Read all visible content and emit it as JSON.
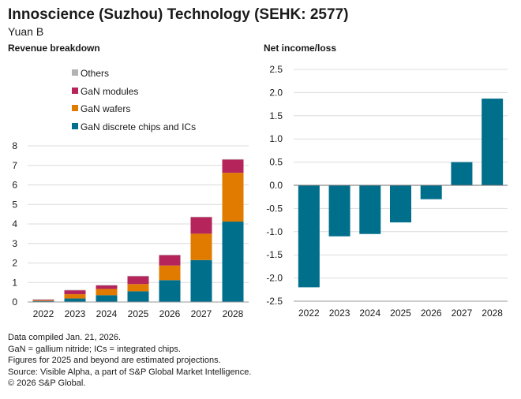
{
  "header": {
    "title": "Innoscience (Suzhou) Technology (SEHK: 2577)",
    "subtitle": "Yuan B"
  },
  "colors": {
    "others": "#b3b3b3",
    "gan_modules": "#b5245a",
    "gan_wafers": "#e07b00",
    "gan_discrete": "#006f8c",
    "grid": "#dcdcdc",
    "axis": "#9a9a9a",
    "text": "#1a1a1a"
  },
  "chart_data": [
    {
      "type": "bar",
      "stacked": true,
      "title": "Revenue breakdown",
      "categories": [
        "2022",
        "2023",
        "2024",
        "2025",
        "2026",
        "2027",
        "2028"
      ],
      "series": [
        {
          "name": "GaN discrete chips and ICs",
          "color_key": "gan_discrete",
          "values": [
            0.05,
            0.18,
            0.35,
            0.55,
            1.12,
            2.15,
            4.12
          ]
        },
        {
          "name": "GaN wafers",
          "color_key": "gan_wafers",
          "values": [
            0.04,
            0.22,
            0.32,
            0.37,
            0.75,
            1.35,
            2.5
          ]
        },
        {
          "name": "GaN modules",
          "color_key": "gan_modules",
          "values": [
            0.03,
            0.2,
            0.18,
            0.4,
            0.53,
            0.85,
            0.68
          ]
        },
        {
          "name": "Others",
          "color_key": "others",
          "values": [
            0.02,
            0.02,
            0.02,
            0.02,
            0.02,
            0.02,
            0.02
          ]
        }
      ],
      "legend_order": [
        "Others",
        "GaN modules",
        "GaN wafers",
        "GaN discrete chips and ICs"
      ],
      "legend_placement": "top-left",
      "ylim": [
        0,
        8
      ],
      "yticks": [
        "0",
        "1",
        "2",
        "3",
        "4",
        "5",
        "6",
        "7",
        "8"
      ],
      "grid": true
    },
    {
      "type": "bar",
      "title": "Net income/loss",
      "categories": [
        "2022",
        "2023",
        "2024",
        "2025",
        "2026",
        "2027",
        "2028"
      ],
      "values": [
        -2.2,
        -1.1,
        -1.05,
        -0.8,
        -0.3,
        0.5,
        1.87
      ],
      "color_key": "gan_discrete",
      "ylim": [
        -2.5,
        2.5
      ],
      "yticks": [
        "-2.5",
        "-2.0",
        "-1.5",
        "-1.0",
        "-0.5",
        "0.0",
        "0.5",
        "1.0",
        "1.5",
        "2.0",
        "2.5"
      ],
      "grid": true
    }
  ],
  "footnotes": [
    "Data compiled Jan. 21, 2026.",
    "GaN = gallium nitride; ICs = integrated chips.",
    "Figures for 2025 and beyond are estimated projections.",
    "Source: Visible Alpha, a part of S&P Global Market Intelligence.",
    "© 2026 S&P Global."
  ]
}
